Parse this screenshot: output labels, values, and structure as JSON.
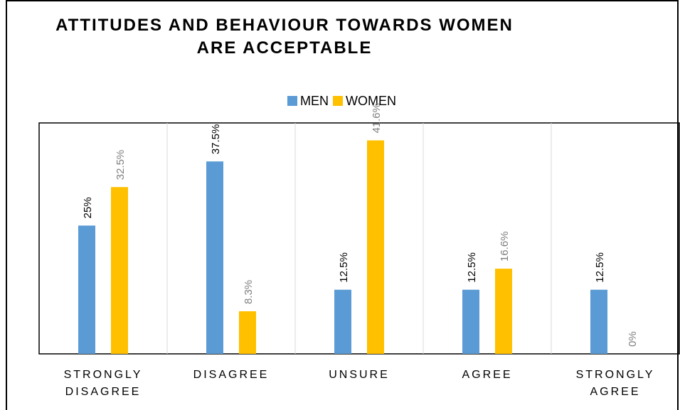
{
  "title_lines": [
    "ATTITUDES AND BEHAVIOUR TOWARDS WOMEN",
    "ARE ACCEPTABLE"
  ],
  "chart_data": {
    "type": "bar",
    "title": "ATTITUDES AND BEHAVIOUR TOWARDS WOMEN ARE ACCEPTABLE",
    "categories": [
      [
        "STRONGLY",
        "DISAGREE"
      ],
      [
        "DISAGREE"
      ],
      [
        "UNSURE"
      ],
      [
        "AGREE"
      ],
      [
        "STRONGLY",
        "AGREE"
      ]
    ],
    "series": [
      {
        "name": "MEN",
        "color": "#5B9BD5",
        "label_color": "#000000",
        "values": [
          25,
          37.5,
          12.5,
          12.5,
          12.5
        ],
        "labels": [
          "25%",
          "37.5%",
          "12.5%",
          "12.5%",
          "12.5%"
        ]
      },
      {
        "name": "WOMEN",
        "color": "#FFC000",
        "label_color": "#7F7F7F",
        "values": [
          32.5,
          8.3,
          41.6,
          16.6,
          0
        ],
        "labels": [
          "32.5%",
          "8.3%",
          "41.6%",
          "16.6%",
          "0%"
        ]
      }
    ],
    "ylim": [
      0,
      45
    ],
    "legend": "top-center",
    "gridlines": "vertical"
  }
}
